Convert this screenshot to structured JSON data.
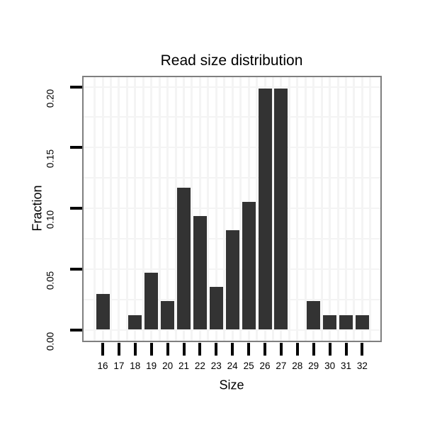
{
  "chart_data": {
    "type": "bar",
    "title": "Read size distribution",
    "xlabel": "Size",
    "ylabel": "Fraction",
    "categories": [
      "16",
      "17",
      "18",
      "19",
      "20",
      "21",
      "22",
      "23",
      "24",
      "25",
      "26",
      "27",
      "28",
      "29",
      "30",
      "31",
      "32"
    ],
    "values": [
      0.0292,
      0,
      0.0117,
      0.0468,
      0.0234,
      0.117,
      0.0936,
      0.0351,
      0.0819,
      0.1053,
      0.1988,
      0.1988,
      0,
      0.0234,
      0.0117,
      0.0117,
      0.0117
    ],
    "y_ticks": {
      "values": [
        0,
        0.05,
        0.1,
        0.15,
        0.2
      ],
      "labels": [
        "0.00",
        "0.05",
        "0.10",
        "0.15",
        "0.20"
      ]
    },
    "ylim": [
      0,
      0.208
    ],
    "grid": "horizontal lines every 0.025, vertical lines at each category and midpoints, very light gray",
    "legend": "none"
  },
  "colors": {
    "bar": "#333333",
    "panel_border": "#7f7f7f",
    "grid": "#f4f4f4",
    "tick": "#000000",
    "text": "#000000",
    "background": "#ffffff"
  }
}
